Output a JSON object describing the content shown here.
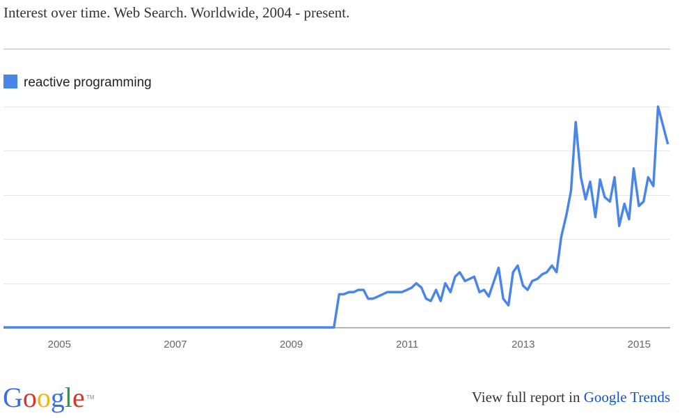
{
  "chart_data": {
    "type": "line",
    "title": "Interest over time. Web Search. Worldwide, 2004 - present.",
    "x": [
      2004,
      2009.7,
      2009.79,
      2009.87,
      2009.96,
      2010.04,
      2010.12,
      2010.21,
      2010.29,
      2010.37,
      2010.46,
      2010.54,
      2010.62,
      2010.71,
      2010.79,
      2010.87,
      2010.96,
      2011.04,
      2011.12,
      2011.21,
      2011.29,
      2011.37,
      2011.46,
      2011.54,
      2011.62,
      2011.71,
      2011.79,
      2011.87,
      2011.96,
      2012.04,
      2012.12,
      2012.21,
      2012.29,
      2012.37,
      2012.46,
      2012.54,
      2012.62,
      2012.71,
      2012.79,
      2012.87,
      2012.96,
      2013.04,
      2013.12,
      2013.21,
      2013.29,
      2013.37,
      2013.46,
      2013.54,
      2013.62,
      2013.71,
      2013.79,
      2013.87,
      2013.96,
      2014.04,
      2014.12,
      2014.21,
      2014.29,
      2014.37,
      2014.46,
      2014.54,
      2014.62,
      2014.71,
      2014.79,
      2014.87,
      2014.96,
      2015.04,
      2015.12,
      2015.21,
      2015.29,
      2015.37,
      2015.46
    ],
    "series": [
      {
        "name": "reactive programming",
        "color": "#4a86e8",
        "values": [
          0,
          0,
          15,
          15,
          16,
          16,
          17,
          17,
          13,
          13,
          14,
          15,
          16,
          16,
          16,
          16,
          17,
          18,
          20,
          18,
          13,
          12,
          17,
          12,
          20,
          16,
          23,
          25,
          21,
          22,
          23,
          16,
          17,
          14,
          21,
          27,
          13,
          10,
          25,
          28,
          19,
          17,
          21,
          22,
          24,
          25,
          28,
          25,
          41,
          51,
          62,
          93,
          68,
          58,
          66,
          50,
          67,
          59,
          57,
          68,
          46,
          56,
          49,
          72,
          55,
          57,
          68,
          64,
          100,
          92,
          83
        ]
      }
    ],
    "xlim": [
      2004,
      2015.5
    ],
    "xticks": [
      2005,
      2007,
      2009,
      2011,
      2013,
      2015
    ],
    "ylim": [
      0,
      100
    ],
    "yticks": [
      0,
      20,
      40,
      60,
      80,
      100
    ],
    "grid": true
  },
  "footer": {
    "logo": "Google",
    "trademark": "TM",
    "link_text": "View full report in",
    "link": "Google Trends"
  }
}
